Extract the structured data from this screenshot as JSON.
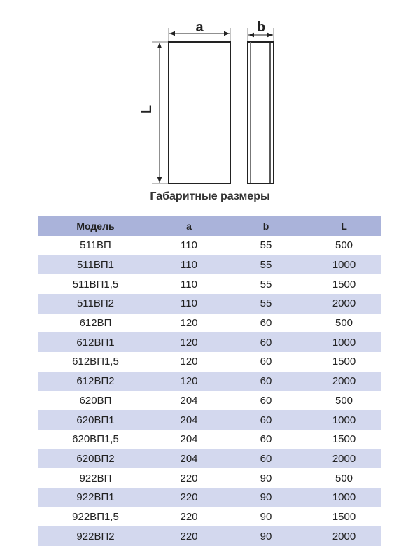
{
  "drawing": {
    "label_a": "a",
    "label_b": "b",
    "label_L": "L"
  },
  "title": "Габаритные размеры",
  "table": {
    "headers": [
      "Модель",
      "a",
      "b",
      "L"
    ],
    "rows": [
      [
        "511ВП",
        "110",
        "55",
        "500"
      ],
      [
        "511ВП1",
        "110",
        "55",
        "1000"
      ],
      [
        "511ВП1,5",
        "110",
        "55",
        "1500"
      ],
      [
        "511ВП2",
        "110",
        "55",
        "2000"
      ],
      [
        "612ВП",
        "120",
        "60",
        "500"
      ],
      [
        "612ВП1",
        "120",
        "60",
        "1000"
      ],
      [
        "612ВП1,5",
        "120",
        "60",
        "1500"
      ],
      [
        "612ВП2",
        "120",
        "60",
        "2000"
      ],
      [
        "620ВП",
        "204",
        "60",
        "500"
      ],
      [
        "620ВП1",
        "204",
        "60",
        "1000"
      ],
      [
        "620ВП1,5",
        "204",
        "60",
        "1500"
      ],
      [
        "620ВП2",
        "204",
        "60",
        "2000"
      ],
      [
        "922ВП",
        "220",
        "90",
        "500"
      ],
      [
        "922ВП1",
        "220",
        "90",
        "1000"
      ],
      [
        "922ВП1,5",
        "220",
        "90",
        "1500"
      ],
      [
        "922ВП2",
        "220",
        "90",
        "2000"
      ]
    ]
  },
  "colors": {
    "header_bg": "#aab3da",
    "stripe_bg": "#d3d8ee"
  }
}
